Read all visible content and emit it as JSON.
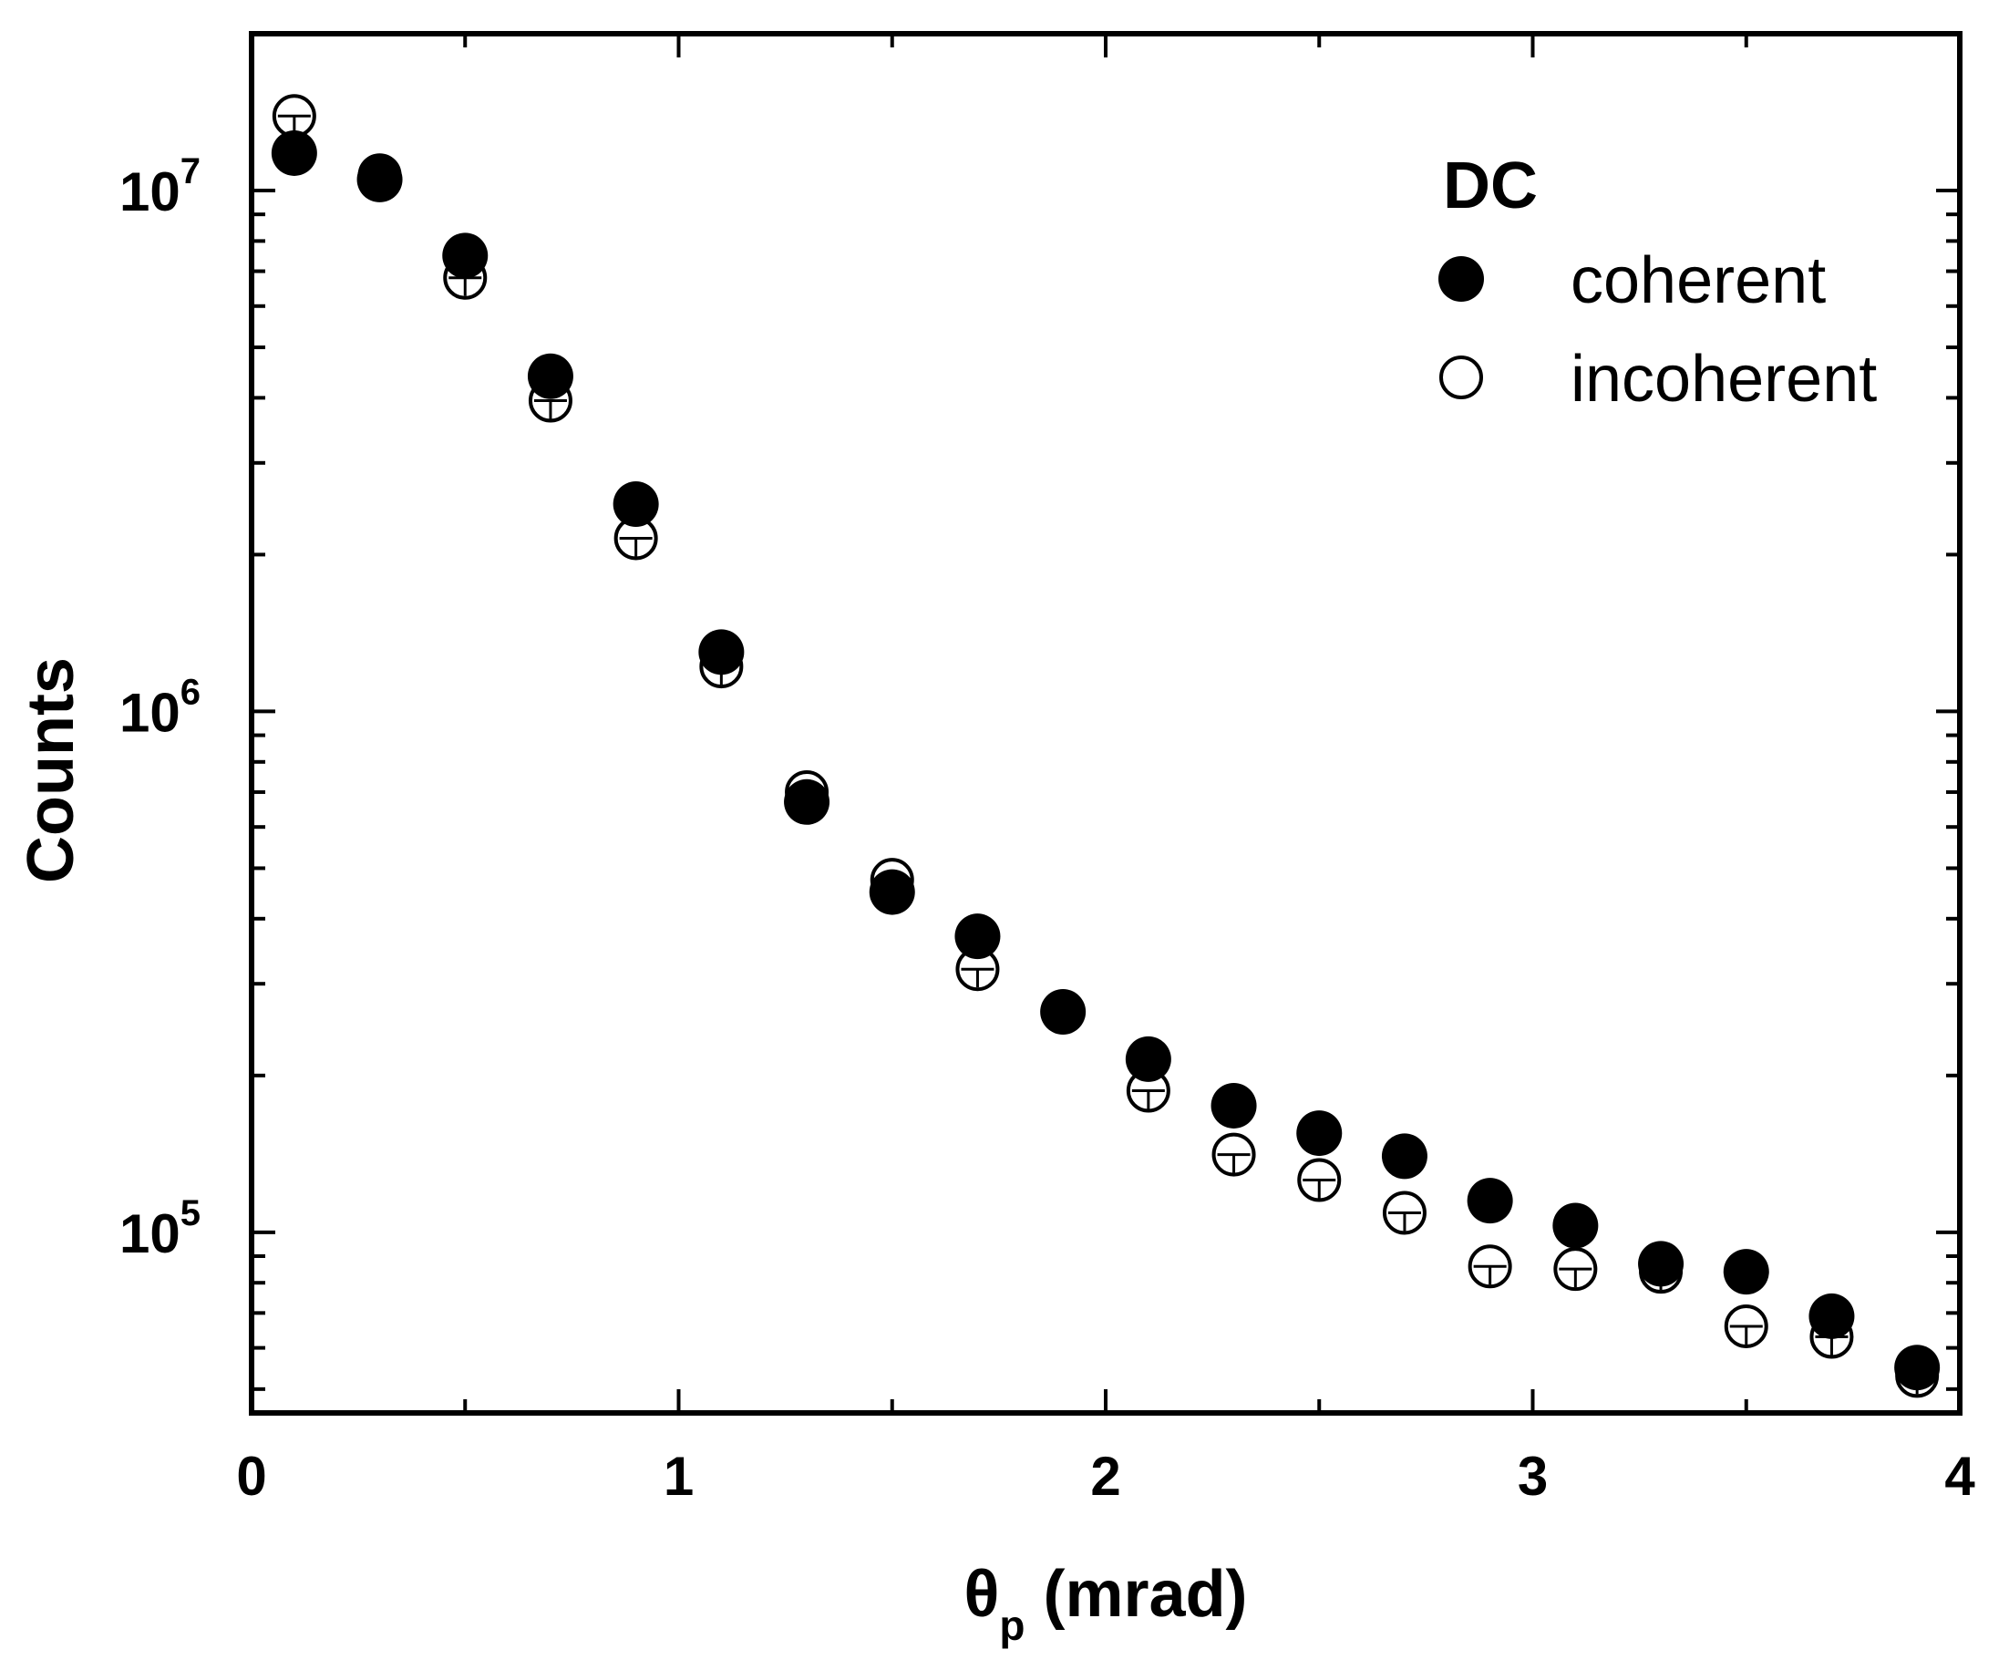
{
  "chart_data": {
    "type": "scatter",
    "title": "",
    "xlabel": {
      "main": "θ",
      "sub": "p",
      "rest": " (mrad)"
    },
    "ylabel": "Counts",
    "xlim": [
      0,
      4
    ],
    "ylim": [
      45000,
      20000000
    ],
    "yscale": "log",
    "x_ticks": [
      {
        "value": 0,
        "label": "0"
      },
      {
        "value": 1,
        "label": "1"
      },
      {
        "value": 2,
        "label": "2"
      },
      {
        "value": 3,
        "label": "3"
      },
      {
        "value": 4,
        "label": "4"
      }
    ],
    "y_ticks": [
      {
        "value": 100000,
        "base": "10",
        "exp": "5"
      },
      {
        "value": 1000000,
        "base": "10",
        "exp": "6"
      },
      {
        "value": 10000000,
        "base": "10",
        "exp": "7"
      }
    ],
    "legend": {
      "title": "DC",
      "placement": "top-right",
      "entries": [
        "coherent",
        "incoherent"
      ]
    },
    "series": [
      {
        "name": "coherent",
        "marker": "filled-circle",
        "x": [
          0.1,
          0.3,
          0.5,
          0.7,
          0.9,
          1.1,
          1.3,
          1.5,
          1.7,
          1.9,
          2.1,
          2.3,
          2.5,
          2.7,
          2.9,
          3.1,
          3.3,
          3.5,
          3.7,
          3.9
        ],
        "y": [
          11800000,
          10500000,
          7500000,
          4400000,
          2500000,
          1300000,
          670000,
          450000,
          370000,
          265000,
          215000,
          175000,
          155000,
          140000,
          115000,
          103000,
          87000,
          84000,
          69000,
          55000
        ]
      },
      {
        "name": "incoherent",
        "marker": "open-circle",
        "x": [
          0.1,
          0.3,
          0.5,
          0.7,
          0.9,
          1.1,
          1.3,
          1.5,
          1.7,
          1.9,
          2.1,
          2.3,
          2.5,
          2.7,
          2.9,
          3.1,
          3.3,
          3.5,
          3.7,
          3.9
        ],
        "y": [
          13900000,
          10700000,
          6800000,
          3950000,
          2150000,
          1220000,
          700000,
          475000,
          320000,
          265000,
          187000,
          141000,
          126000,
          109000,
          86000,
          85000,
          84000,
          66000,
          63000,
          53000
        ]
      }
    ]
  }
}
